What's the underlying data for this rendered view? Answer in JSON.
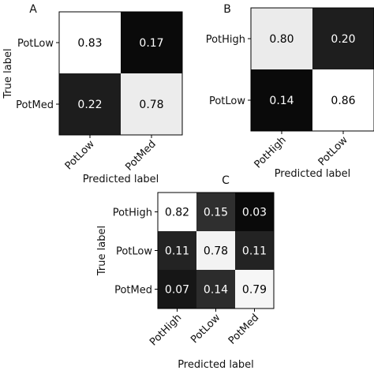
{
  "chart_data": [
    {
      "type": "heatmap",
      "panel_label": "A",
      "x_categories": [
        "PotLow",
        "PotMed"
      ],
      "y_categories": [
        "PotLow",
        "PotMed"
      ],
      "values": [
        [
          0.83,
          0.17
        ],
        [
          0.22,
          0.78
        ]
      ],
      "xlabel": "Predicted label",
      "ylabel": "True label",
      "colormap": "grayscale (higher = lighter)"
    },
    {
      "type": "heatmap",
      "panel_label": "B",
      "x_categories": [
        "PotHigh",
        "PotLow"
      ],
      "y_categories": [
        "PotHigh",
        "PotLow"
      ],
      "values": [
        [
          0.8,
          0.2
        ],
        [
          0.14,
          0.86
        ]
      ],
      "xlabel": "Predicted label",
      "ylabel": "",
      "colormap": "grayscale (higher = lighter)"
    },
    {
      "type": "heatmap",
      "panel_label": "C",
      "x_categories": [
        "PotHigh",
        "PotLow",
        "PotMed"
      ],
      "y_categories": [
        "PotHigh",
        "PotLow",
        "PotMed"
      ],
      "values": [
        [
          0.82,
          0.15,
          0.03
        ],
        [
          0.11,
          0.78,
          0.11
        ],
        [
          0.07,
          0.14,
          0.79
        ]
      ],
      "xlabel": "Predicted label",
      "ylabel": "True label",
      "colormap": "grayscale (higher = lighter)"
    }
  ]
}
